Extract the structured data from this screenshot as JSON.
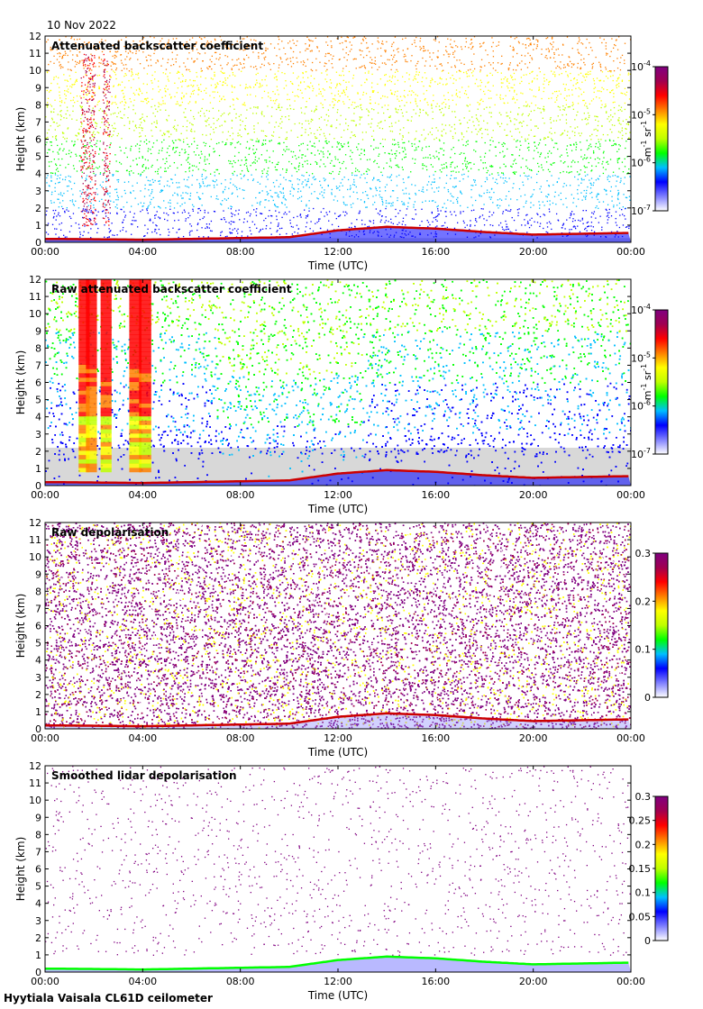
{
  "date": "10 Nov 2022",
  "footer": "Hyytiala Vaisala CL61D ceilometer",
  "colors": {
    "rainbow": [
      "#ffffff",
      "#7f7fff",
      "#0000ff",
      "#00bfff",
      "#00ff00",
      "#bfff00",
      "#ffff00",
      "#ff8000",
      "#ff0000",
      "#a00050",
      "#800080"
    ],
    "cloud_base": "#cc0000",
    "noise_grey": "#d8d8d8"
  },
  "chart_data": [
    {
      "type": "heatmap",
      "title": "Attenuated backscatter coefficient",
      "xlabel": "Time (UTC)",
      "ylabel": "Height (km)",
      "xlim": [
        0,
        24
      ],
      "ylim": [
        0,
        12
      ],
      "x_ticks": [
        "00:00",
        "04:00",
        "08:00",
        "12:00",
        "16:00",
        "20:00",
        "00:00"
      ],
      "y_ticks": [
        "0",
        "1",
        "2",
        "3",
        "4",
        "5",
        "6",
        "7",
        "8",
        "9",
        "10",
        "11",
        "12"
      ],
      "colorbar": {
        "scale": "log",
        "range": [
          1e-07,
          0.0001
        ],
        "ticks": [
          {
            "base": "10",
            "exp": "-4"
          },
          {
            "base": "10",
            "exp": "-5"
          },
          {
            "base": "10",
            "exp": "-6"
          },
          {
            "base": "10",
            "exp": "-7"
          }
        ],
        "unit": {
          "a": "m",
          "ae": "-1",
          "b": " sr",
          "be": "-1"
        }
      },
      "style": "sparse"
    },
    {
      "type": "heatmap",
      "title": "Raw attenuated backscatter coefficient",
      "xlabel": "Time (UTC)",
      "ylabel": "Height (km)",
      "xlim": [
        0,
        24
      ],
      "ylim": [
        0,
        12
      ],
      "x_ticks": [
        "00:00",
        "04:00",
        "08:00",
        "12:00",
        "16:00",
        "20:00",
        "00:00"
      ],
      "y_ticks": [
        "0",
        "1",
        "2",
        "3",
        "4",
        "5",
        "6",
        "7",
        "8",
        "9",
        "10",
        "11",
        "12"
      ],
      "colorbar": {
        "scale": "log",
        "range": [
          1e-07,
          0.0001
        ],
        "ticks": [
          {
            "base": "10",
            "exp": "-4"
          },
          {
            "base": "10",
            "exp": "-5"
          },
          {
            "base": "10",
            "exp": "-6"
          },
          {
            "base": "10",
            "exp": "-7"
          }
        ],
        "unit": {
          "a": "m",
          "ae": "-1",
          "b": " sr",
          "be": "-1"
        }
      },
      "style": "raw"
    },
    {
      "type": "heatmap",
      "title": "Raw depolarisation",
      "xlabel": "Time (UTC)",
      "ylabel": "Height (km)",
      "xlim": [
        0,
        24
      ],
      "ylim": [
        0,
        12
      ],
      "x_ticks": [
        "00:00",
        "04:00",
        "08:00",
        "12:00",
        "16:00",
        "20:00",
        "00:00"
      ],
      "y_ticks": [
        "0",
        "1",
        "2",
        "3",
        "4",
        "5",
        "6",
        "7",
        "8",
        "9",
        "10",
        "11",
        "12"
      ],
      "colorbar": {
        "scale": "linear",
        "range": [
          0,
          0.3
        ],
        "ticks": [
          "0.3",
          "0.2",
          "0.1",
          "0"
        ]
      },
      "style": "depol"
    },
    {
      "type": "heatmap",
      "title": "Smoothed lidar depolarisation",
      "xlabel": "Time (UTC)",
      "ylabel": "Height (km)",
      "xlim": [
        0,
        24
      ],
      "ylim": [
        0,
        12
      ],
      "x_ticks": [
        "00:00",
        "04:00",
        "08:00",
        "12:00",
        "16:00",
        "20:00",
        "00:00"
      ],
      "y_ticks": [
        "0",
        "1",
        "2",
        "3",
        "4",
        "5",
        "6",
        "7",
        "8",
        "9",
        "10",
        "11",
        "12"
      ],
      "colorbar": {
        "scale": "linear",
        "range": [
          0,
          0.3
        ],
        "ticks": [
          "0.3",
          "0.25",
          "0.2",
          "0.15",
          "0.1",
          "0.05",
          "0"
        ]
      },
      "style": "smooth"
    }
  ],
  "boundary_layer_km": [
    [
      0,
      0.2
    ],
    [
      2,
      0.18
    ],
    [
      4,
      0.15
    ],
    [
      6,
      0.2
    ],
    [
      8,
      0.25
    ],
    [
      10,
      0.3
    ],
    [
      11,
      0.5
    ],
    [
      12,
      0.7
    ],
    [
      13,
      0.8
    ],
    [
      14,
      0.9
    ],
    [
      15,
      0.85
    ],
    [
      16,
      0.8
    ],
    [
      18,
      0.6
    ],
    [
      20,
      0.45
    ],
    [
      22,
      0.5
    ],
    [
      24,
      0.55
    ]
  ],
  "cloud_columns_h": [
    1.6,
    1.9,
    2.5,
    3.7,
    4.1
  ]
}
